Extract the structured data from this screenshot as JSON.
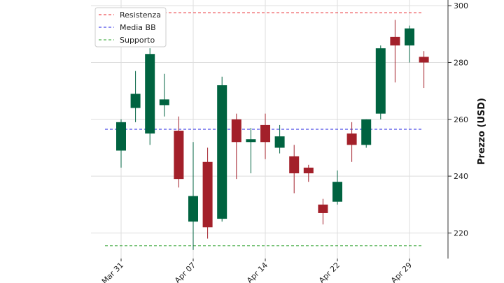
{
  "chart_data": {
    "type": "candlestick",
    "ylabel": "Prezzo (USD)",
    "ylim": [
      211,
      302
    ],
    "y_ticks": [
      220,
      240,
      260,
      280,
      300
    ],
    "y_axis_position": "right",
    "grid": true,
    "legend_position": "top-left",
    "x_tick_labels": [
      "Mar 31",
      "Apr 07",
      "Apr 14",
      "Apr 22",
      "Apr 29"
    ],
    "x_tick_index": [
      0,
      5,
      10,
      15,
      20
    ],
    "colors": {
      "up": "#006340",
      "down": "#a3202a"
    },
    "candles": [
      {
        "open": 249,
        "high": 260,
        "low": 243,
        "close": 259
      },
      {
        "open": 264,
        "high": 277,
        "low": 259,
        "close": 269
      },
      {
        "open": 255,
        "high": 285,
        "low": 251,
        "close": 283
      },
      {
        "open": 265,
        "high": 276,
        "low": 261,
        "close": 267
      },
      {
        "open": 256,
        "high": 261,
        "low": 236,
        "close": 239
      },
      {
        "open": 224,
        "high": 252,
        "low": 214,
        "close": 233
      },
      {
        "open": 245,
        "high": 250,
        "low": 218,
        "close": 222
      },
      {
        "open": 225,
        "high": 275,
        "low": 224,
        "close": 272
      },
      {
        "open": 260,
        "high": 262,
        "low": 239,
        "close": 252
      },
      {
        "open": 252,
        "high": 257,
        "low": 241,
        "close": 253
      },
      {
        "open": 258,
        "high": 262,
        "low": 246,
        "close": 252
      },
      {
        "open": 250,
        "high": 258,
        "low": 248,
        "close": 254
      },
      {
        "open": 247,
        "high": 251,
        "low": 234,
        "close": 241
      },
      {
        "open": 243,
        "high": 244,
        "low": 238,
        "close": 241
      },
      {
        "open": 230,
        "high": 232,
        "low": 223,
        "close": 227
      },
      {
        "open": 231,
        "high": 242,
        "low": 230,
        "close": 238
      },
      {
        "open": 255,
        "high": 259,
        "low": 245,
        "close": 251
      },
      {
        "open": 251,
        "high": 260,
        "low": 250,
        "close": 260
      },
      {
        "open": 262,
        "high": 286,
        "low": 260,
        "close": 285
      },
      {
        "open": 289,
        "high": 295,
        "low": 273,
        "close": 286
      },
      {
        "open": 286,
        "high": 293,
        "low": 280,
        "close": 292
      },
      {
        "open": 282,
        "high": 284,
        "low": 271,
        "close": 280
      }
    ],
    "lines": [
      {
        "name": "Resistenza",
        "value": 297.5,
        "color": "#e8262b"
      },
      {
        "name": "Media BB",
        "value": 256.5,
        "color": "#1f1fe0"
      },
      {
        "name": "Supporto",
        "value": 215.5,
        "color": "#2aa02a"
      }
    ]
  }
}
